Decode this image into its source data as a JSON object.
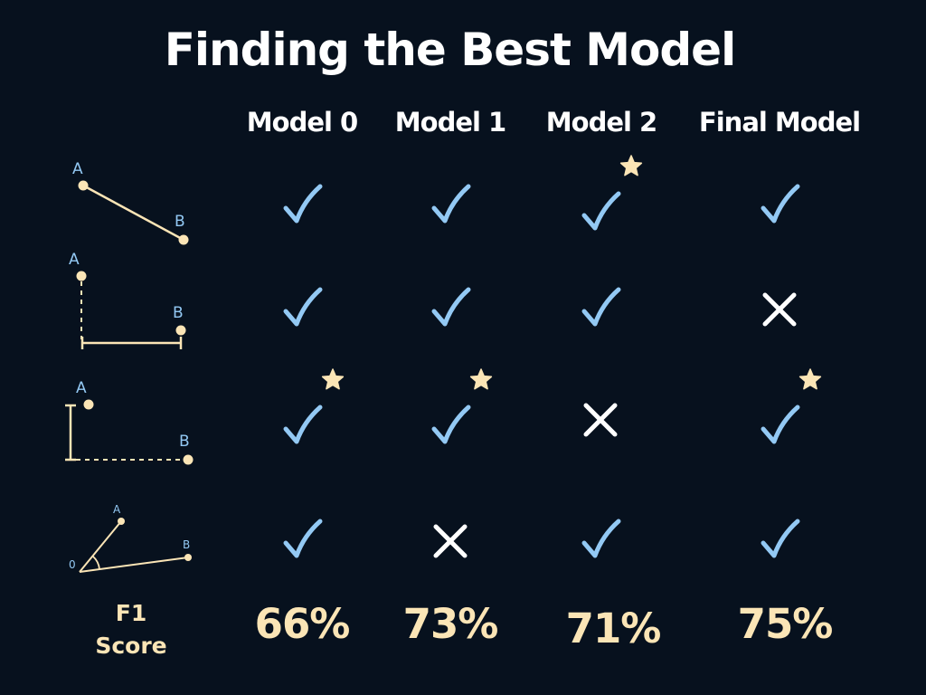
{
  "title": "Finding the Best Model",
  "columns": [
    "Model 0",
    "Model 1",
    "Model 2",
    "Final Model"
  ],
  "row_icons": [
    "line-distance-icon",
    "horizontal-distance-icon",
    "vertical-distance-icon",
    "angle-icon"
  ],
  "icon_labels": {
    "a": "A",
    "b": "B",
    "origin": "0"
  },
  "rows": [
    [
      "check",
      "check",
      "check-star",
      "check"
    ],
    [
      "check",
      "check",
      "check",
      "cross"
    ],
    [
      "check-star",
      "check-star",
      "cross",
      "check-star"
    ],
    [
      "check",
      "cross",
      "check",
      "check"
    ]
  ],
  "f1": {
    "line1": "F1",
    "line2": "Score"
  },
  "scores": [
    "66%",
    "73%",
    "71%",
    "75%"
  ],
  "colors": {
    "check": "#93c9f4",
    "cross": "#ffffff",
    "star": "#fbe5b6",
    "accent": "#fbe5b6",
    "background": "#07111e"
  }
}
